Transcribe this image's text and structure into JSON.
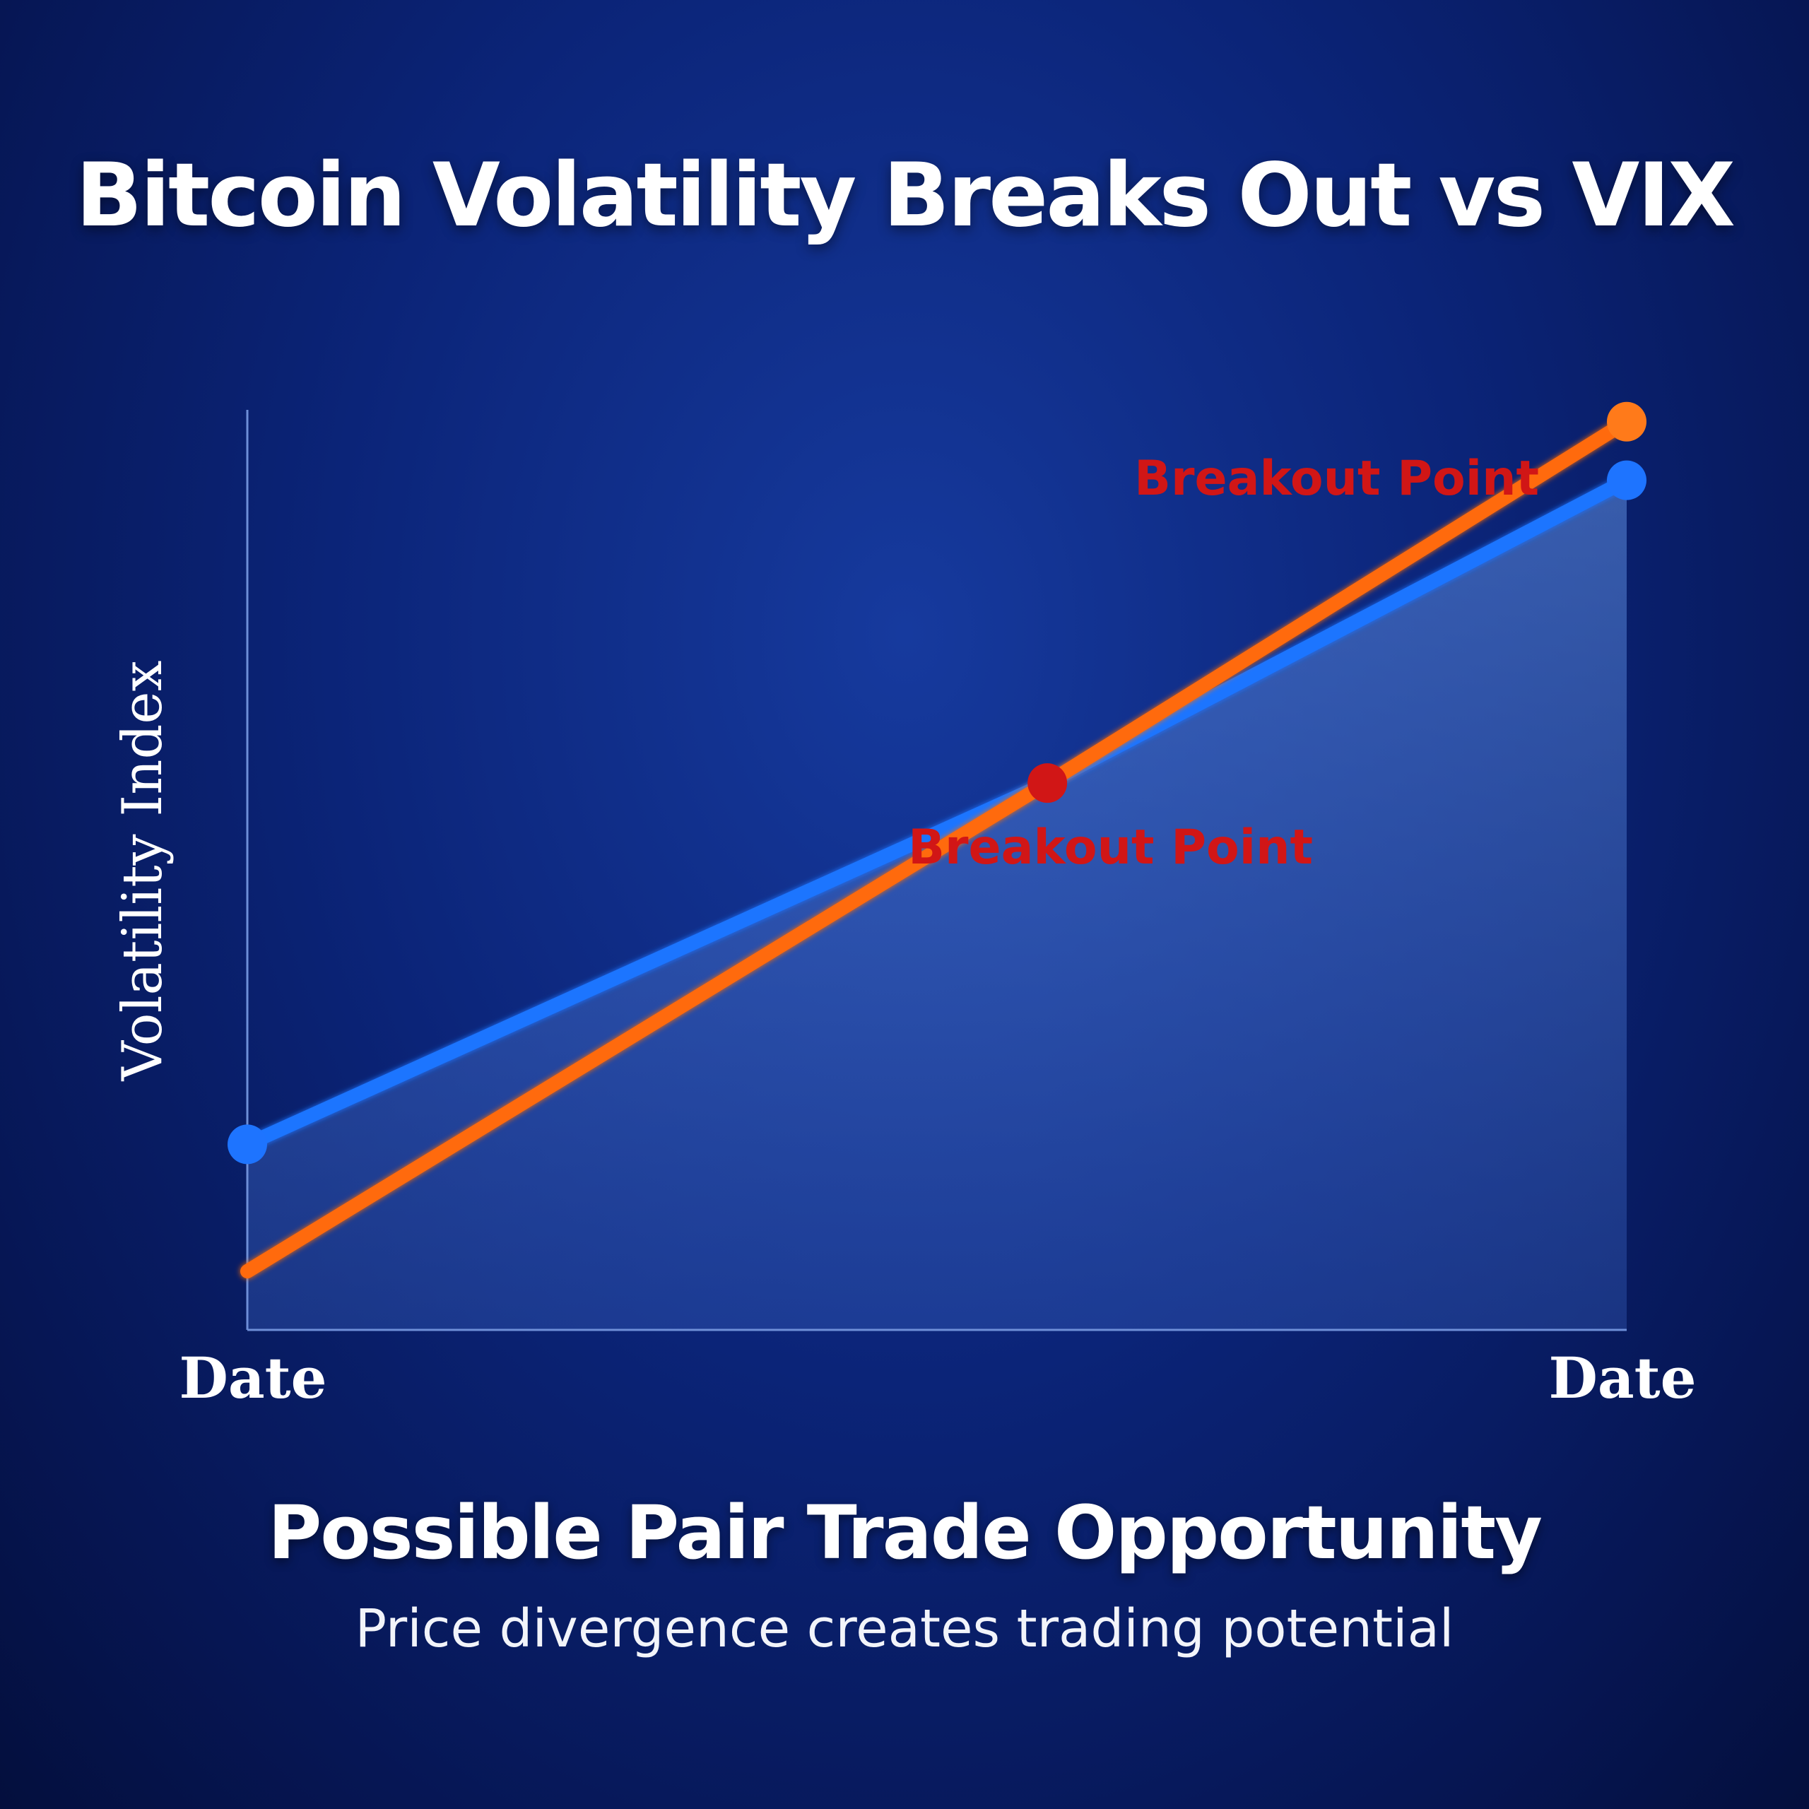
{
  "title": "Bitcoin Volatility Breaks Out vs VIX",
  "subtitle": "Possible Pair Trade Opportunity",
  "caption": "Price divergence creates trading potential",
  "chart_data": {
    "type": "line",
    "ylabel": "Volatility Index",
    "x_tick_labels": [
      "Date",
      "Date"
    ],
    "x": [
      0,
      0.58,
      1
    ],
    "ylim": [
      0,
      1
    ],
    "grid": false,
    "series": [
      {
        "color": "#1e74ff",
        "values": [
          0.19,
          0.56,
          0.87
        ],
        "area_fill": true
      },
      {
        "color": "#ff6a10",
        "values": [
          0.06,
          0.56,
          0.93
        ]
      }
    ],
    "markers": [
      {
        "x": 0,
        "y": 0.19,
        "color": "#1e74ff"
      },
      {
        "x": 0.58,
        "y": 0.56,
        "color": "#d11616"
      },
      {
        "x": 1,
        "y": 0.87,
        "color": "#1e74ff"
      },
      {
        "x": 1,
        "y": 0.93,
        "color": "#ff7a1a"
      }
    ],
    "annotations": [
      {
        "text": "Breakout Point",
        "x": 1,
        "y": 0.93
      },
      {
        "text": "Breakout Point",
        "x": 0.58,
        "y": 0.56
      }
    ]
  }
}
